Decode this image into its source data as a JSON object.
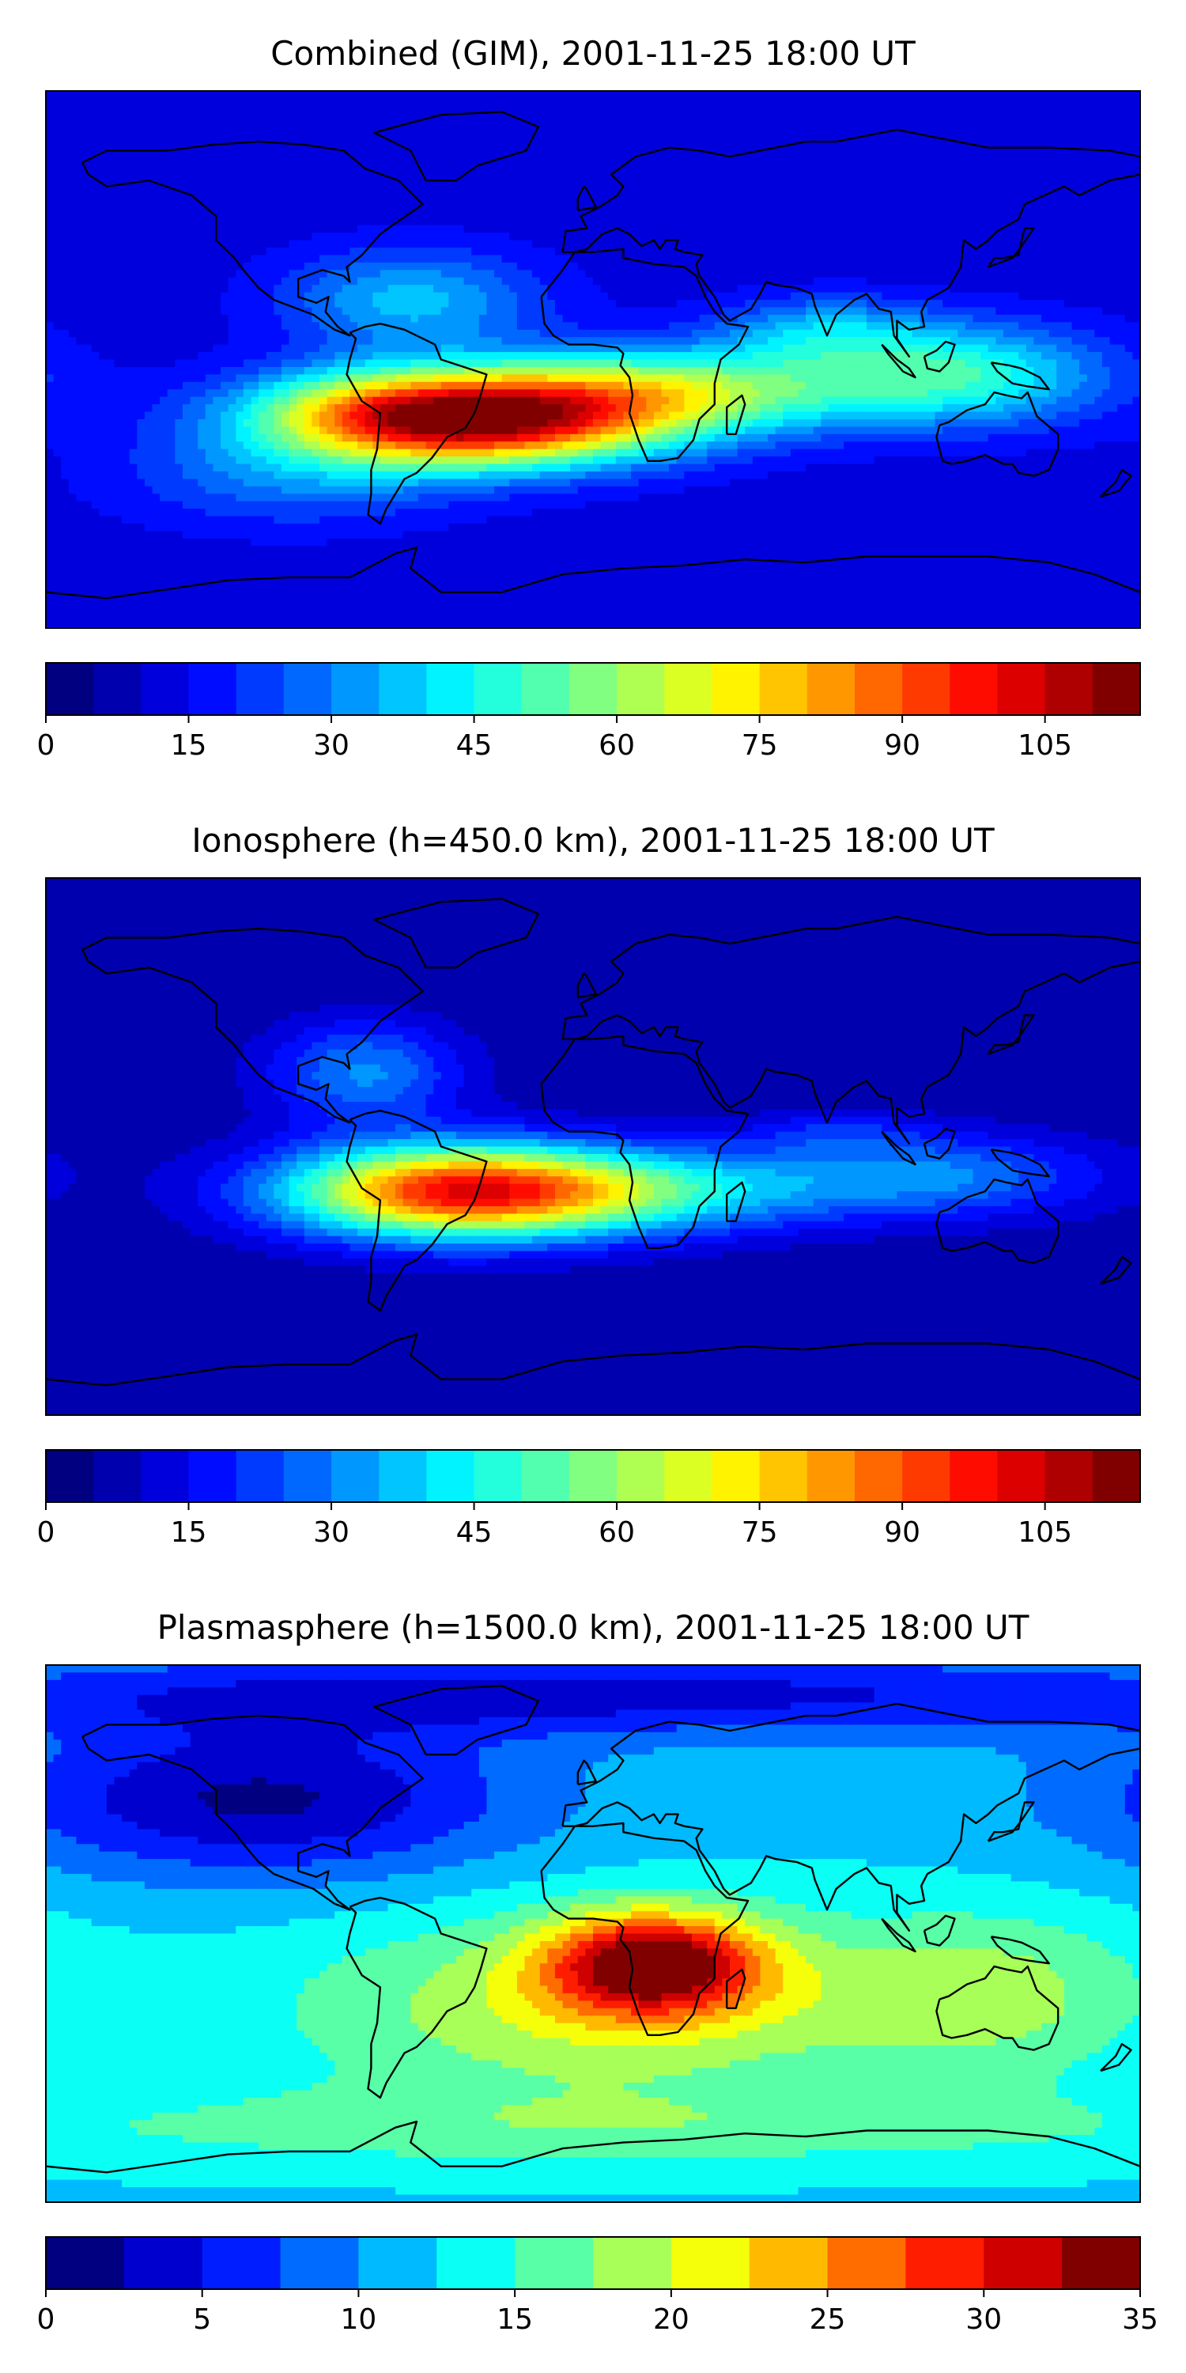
{
  "panels": [
    {
      "id": "combined",
      "title": "Combined (GIM), 2001-11-25 18:00 UT",
      "colorbar": {
        "min": 0,
        "max": 115,
        "ticks": [
          "0",
          "15",
          "30",
          "45",
          "60",
          "75",
          "90",
          "105"
        ],
        "tick_values": [
          0,
          15,
          30,
          45,
          60,
          75,
          90,
          105
        ],
        "levels": 23
      },
      "background_value": 12,
      "blobs": [
        {
          "lon": -40,
          "lat": -20,
          "slon": 45,
          "slat": 11,
          "amp": 100
        },
        {
          "lon": -75,
          "lat": -15,
          "slon": 25,
          "slat": 9,
          "amp": 12
        },
        {
          "lon": 30,
          "lat": -10,
          "slon": 45,
          "slat": 10,
          "amp": 40
        },
        {
          "lon": 120,
          "lat": -5,
          "slon": 35,
          "slat": 12,
          "amp": 35
        },
        {
          "lon": -60,
          "lat": 20,
          "slon": 30,
          "slat": 12,
          "amp": 25
        },
        {
          "lon": 75,
          "lat": 10,
          "slon": 25,
          "slat": 8,
          "amp": 20
        },
        {
          "lon": -100,
          "lat": -40,
          "slon": 40,
          "slat": 12,
          "amp": 15
        }
      ]
    },
    {
      "id": "ionosphere",
      "title": "Ionosphere  (h=450.0 km), 2001-11-25 18:00 UT",
      "colorbar": {
        "min": 0,
        "max": 115,
        "ticks": [
          "0",
          "15",
          "30",
          "45",
          "60",
          "75",
          "90",
          "105"
        ],
        "tick_values": [
          0,
          15,
          30,
          45,
          60,
          75,
          90,
          105
        ],
        "levels": 23
      },
      "background_value": 6,
      "blobs": [
        {
          "lon": -45,
          "lat": -15,
          "slon": 40,
          "slat": 11,
          "amp": 88
        },
        {
          "lon": -75,
          "lat": 25,
          "slon": 22,
          "slat": 12,
          "amp": 25
        },
        {
          "lon": 20,
          "lat": -15,
          "slon": 40,
          "slat": 10,
          "amp": 30
        },
        {
          "lon": 110,
          "lat": -10,
          "slon": 40,
          "slat": 10,
          "amp": 25
        },
        {
          "lon": 80,
          "lat": 5,
          "slon": 20,
          "slat": 5,
          "amp": 10
        }
      ]
    },
    {
      "id": "plasmasphere",
      "title": "Plasmasphere (h=1500.0 km), 2001-11-25 18:00 UT",
      "colorbar": {
        "min": 0,
        "max": 35,
        "ticks": [
          "0",
          "5",
          "10",
          "15",
          "20",
          "25",
          "30",
          "35"
        ],
        "tick_values": [
          0,
          5,
          10,
          15,
          20,
          25,
          30,
          35
        ],
        "levels": 14
      },
      "background_value": 12,
      "blobs": [
        {
          "lon": 20,
          "lat": -10,
          "slon": 25,
          "slat": 12,
          "amp": 20
        },
        {
          "lon": 0,
          "lat": -25,
          "slon": 70,
          "slat": 22,
          "amp": 8
        },
        {
          "lon": 130,
          "lat": -20,
          "slon": 40,
          "slat": 20,
          "amp": 6
        },
        {
          "lon": -110,
          "lat": 45,
          "slon": 60,
          "slat": 18,
          "amp": -10
        },
        {
          "lon": 0,
          "lat": 80,
          "slon": 180,
          "slat": 10,
          "amp": -8
        },
        {
          "lon": 0,
          "lat": -65,
          "slon": 180,
          "slat": 10,
          "amp": 4
        }
      ]
    }
  ],
  "colors": {
    "frame": "#000000",
    "coastline": "#000000"
  }
}
